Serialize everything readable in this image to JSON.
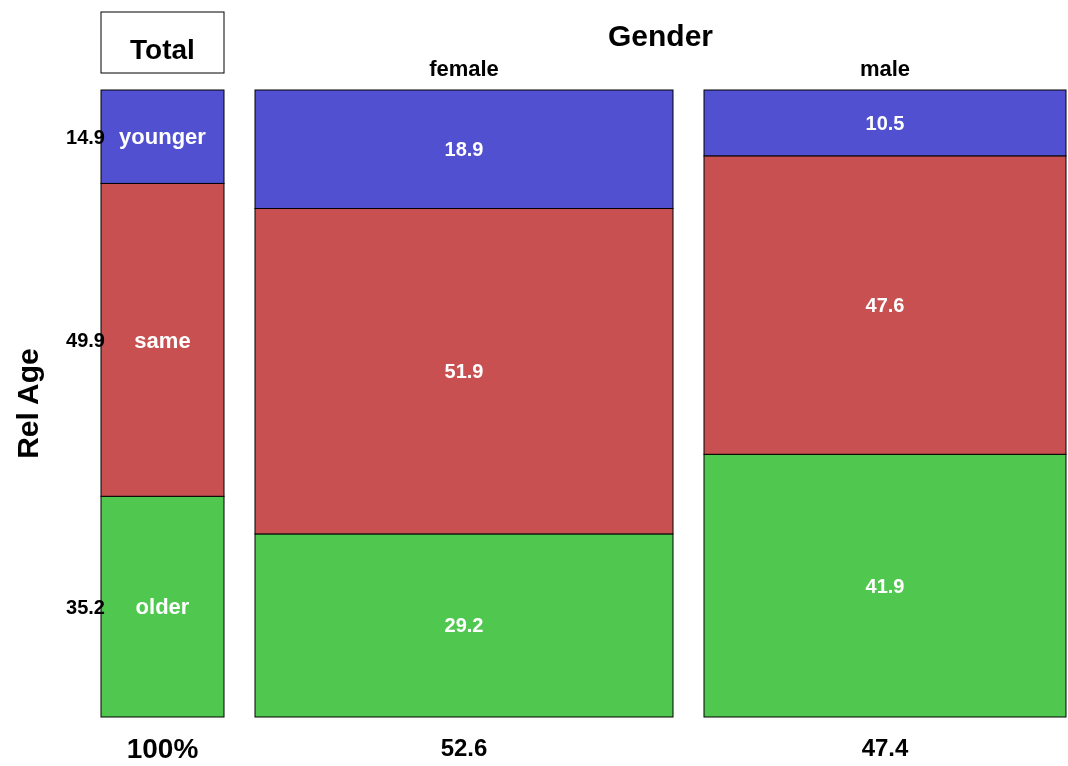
{
  "chart_data": {
    "type": "bar",
    "stacked": true,
    "title": "Gender",
    "ylabel": "Rel Age",
    "categories": [
      "Total",
      "female",
      "male"
    ],
    "series": [
      {
        "name": "older",
        "color": "#50c850",
        "values": [
          35.2,
          29.2,
          41.9
        ]
      },
      {
        "name": "same",
        "color": "#c85050",
        "values": [
          49.9,
          51.9,
          47.6
        ]
      },
      {
        "name": "younger",
        "color": "#5050d0",
        "values": [
          14.9,
          18.9,
          10.5
        ]
      }
    ],
    "data_labels": true,
    "annotations": [
      "100%",
      "52.6",
      "47.4"
    ]
  }
}
